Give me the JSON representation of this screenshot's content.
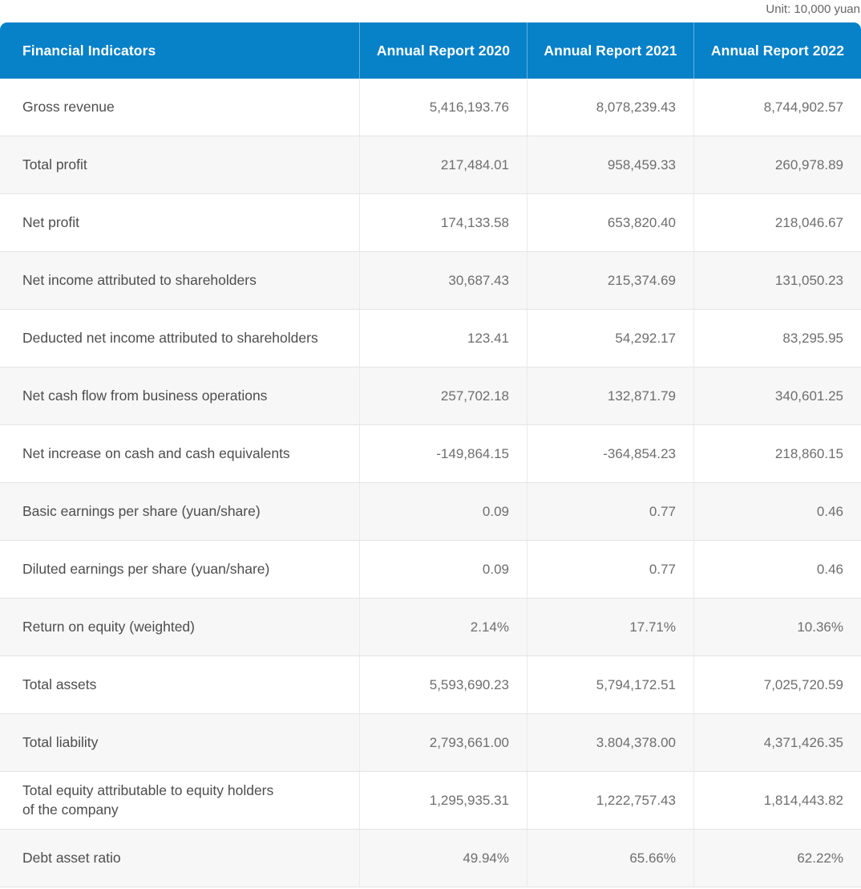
{
  "unit_label": "Unit: 10,000 yuan",
  "colors": {
    "header_bg": "#0781c8",
    "header_text": "#ffffff",
    "alt_row_bg": "#f7f7f7",
    "row_border": "#e4e4e4",
    "label_text": "#4d4d4d",
    "value_text": "#6e6e6e",
    "unit_text": "#666666"
  },
  "chart_data": {
    "type": "table",
    "title": "Financial Indicators by Annual Report",
    "columns": [
      "Financial Indicators",
      "Annual Report 2020",
      "Annual Report 2021",
      "Annual Report 2022"
    ],
    "rows": [
      {
        "label": "Gross revenue",
        "values": [
          "5,416,193.76",
          "8,078,239.43",
          "8,744,902.57"
        ]
      },
      {
        "label": "Total profit",
        "values": [
          "217,484.01",
          "958,459.33",
          "260,978.89"
        ]
      },
      {
        "label": "Net profit",
        "values": [
          "174,133.58",
          "653,820.40",
          "218,046.67"
        ]
      },
      {
        "label": "Net income attributed to shareholders",
        "values": [
          "30,687.43",
          "215,374.69",
          "131,050.23"
        ]
      },
      {
        "label": "Deducted net income attributed to shareholders",
        "values": [
          "123.41",
          "54,292.17",
          "83,295.95"
        ]
      },
      {
        "label": "Net cash flow from business operations",
        "values": [
          "257,702.18",
          "132,871.79",
          "340,601.25"
        ]
      },
      {
        "label": "Net increase on cash and cash equivalents",
        "values": [
          "-149,864.15",
          "-364,854.23",
          "218,860.15"
        ]
      },
      {
        "label": "Basic earnings per share (yuan/share)",
        "values": [
          "0.09",
          "0.77",
          "0.46"
        ]
      },
      {
        "label": "Diluted earnings per share (yuan/share)",
        "values": [
          "0.09",
          "0.77",
          "0.46"
        ]
      },
      {
        "label": "Return on equity (weighted)",
        "values": [
          "2.14%",
          "17.71%",
          "10.36%"
        ]
      },
      {
        "label": "Total assets",
        "values": [
          "5,593,690.23",
          "5,794,172.51",
          "7,025,720.59"
        ]
      },
      {
        "label": "Total liability",
        "values": [
          "2,793,661.00",
          "3.804,378.00",
          "4,371,426.35"
        ]
      },
      {
        "label": "Total equity attributable to equity holders\nof the company",
        "values": [
          "1,295,935.31",
          "1,222,757.43",
          "1,814,443.82"
        ]
      },
      {
        "label": "Debt asset ratio",
        "values": [
          "49.94%",
          "65.66%",
          "62.22%"
        ]
      }
    ]
  }
}
